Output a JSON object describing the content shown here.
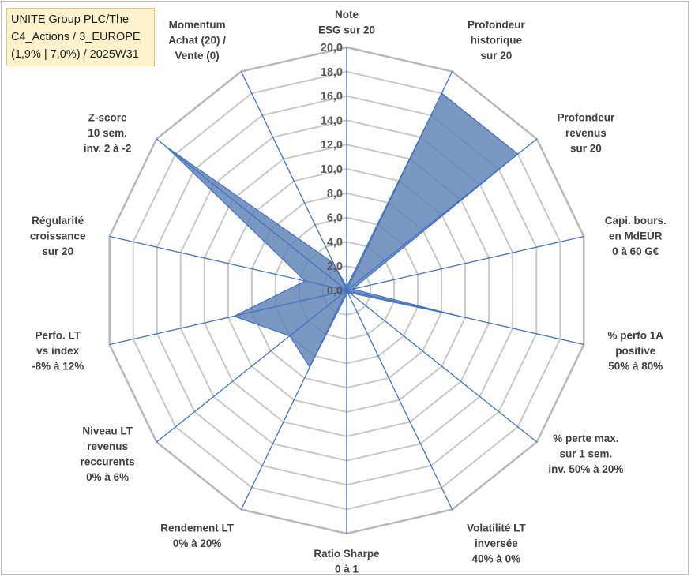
{
  "title": {
    "lines": [
      "UNITE Group PLC/The",
      "C4_Actions / 3_EUROPE",
      "(1,9% | 7,0%) / 2025W31"
    ]
  },
  "colors": {
    "fill": "#5b83b5",
    "line": "#4472c4",
    "grid": "#c8c8c8",
    "title_bg": "#fff2cc"
  },
  "chart_data": {
    "type": "radar",
    "rmin": 0,
    "rmax": 20,
    "tick_step": 2,
    "tick_labels": [
      "0,0",
      "2,0",
      "4,0",
      "6,0",
      "8,0",
      "10,0",
      "12,0",
      "14,0",
      "16,0",
      "18,0",
      "20,0"
    ],
    "grid": true,
    "axes": [
      {
        "label": [
          "Note",
          "ESG sur 20"
        ],
        "value": 0.3
      },
      {
        "label": [
          "Profondeur",
          "historique",
          "sur 20"
        ],
        "value": 18.0
      },
      {
        "label": [
          "Profondeur",
          "revenus",
          "sur 20"
        ],
        "value": 18.0
      },
      {
        "label": [
          "Capi. bours.",
          "en MdEUR",
          "0 à 60 G€"
        ],
        "value": 0.5
      },
      {
        "label": [
          "% perfo 1A",
          "positive",
          "50% à 80%"
        ],
        "value": 9.5
      },
      {
        "label": [
          "% perte max.",
          "sur 1 sem.",
          "inv. 50% à 20%"
        ],
        "value": 0.3
      },
      {
        "label": [
          "Volatilité LT",
          "inversée",
          "40% à 0%"
        ],
        "value": 0.3
      },
      {
        "label": [
          "Ratio Sharpe",
          "0 à 1"
        ],
        "value": 0.3
      },
      {
        "label": [
          "Rendement LT",
          "0% à 20%"
        ],
        "value": 7.0
      },
      {
        "label": [
          "Niveau LT",
          "revenus",
          "reccurents",
          "0% à 6%"
        ],
        "value": 6.0
      },
      {
        "label": [
          "Perfo. LT",
          "vs index",
          "-8% à 12%"
        ],
        "value": 9.5
      },
      {
        "label": [
          "Régularité",
          "croissance",
          "sur 20"
        ],
        "value": 3.5
      },
      {
        "label": [
          "Z-score",
          "10 sem.",
          "inv. 2 à -2"
        ],
        "value": 19.0
      },
      {
        "label": [
          "Momentum",
          "Achat (20) /",
          "Vente (0)"
        ],
        "value": 2.5
      }
    ]
  }
}
